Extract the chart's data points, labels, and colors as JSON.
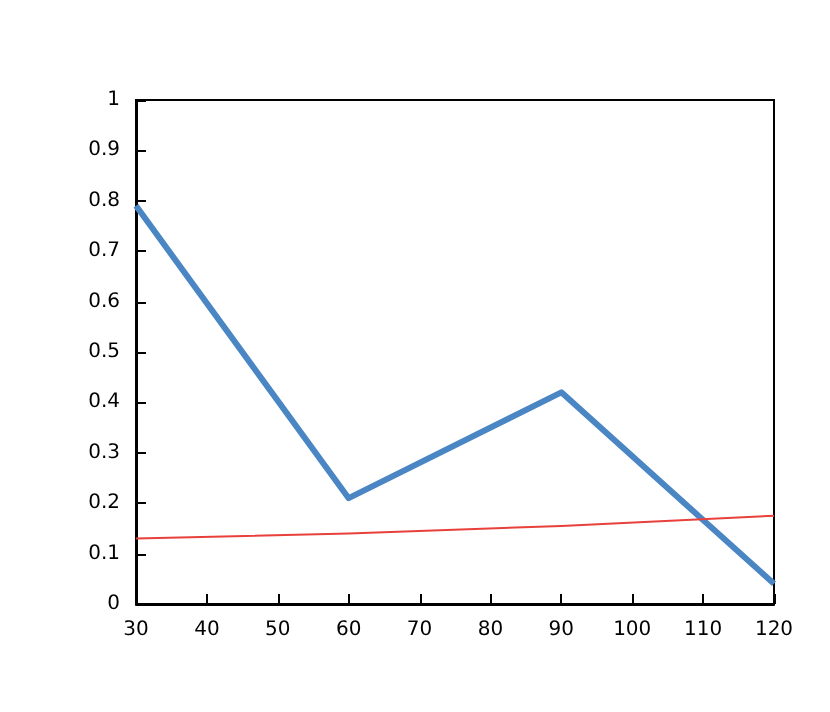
{
  "chart_data": {
    "type": "line",
    "x": [
      30,
      60,
      90,
      120
    ],
    "series": [
      {
        "color": "#4a86c4",
        "values": [
          0.79,
          0.21,
          0.42,
          0.04
        ]
      },
      {
        "color": "#e8403a",
        "values": [
          0.13,
          0.14,
          0.155,
          0.175
        ]
      }
    ],
    "xlim": [
      30,
      120
    ],
    "xticks": [
      30,
      40,
      50,
      60,
      70,
      80,
      90,
      100,
      110,
      120
    ],
    "ylim": [
      0,
      1
    ],
    "yticks": [
      0,
      0.1,
      0.2,
      0.3,
      0.4,
      0.5,
      0.6,
      0.7,
      0.8,
      0.9,
      1
    ],
    "grid": false,
    "marker": "none",
    "line_style": "solid"
  }
}
